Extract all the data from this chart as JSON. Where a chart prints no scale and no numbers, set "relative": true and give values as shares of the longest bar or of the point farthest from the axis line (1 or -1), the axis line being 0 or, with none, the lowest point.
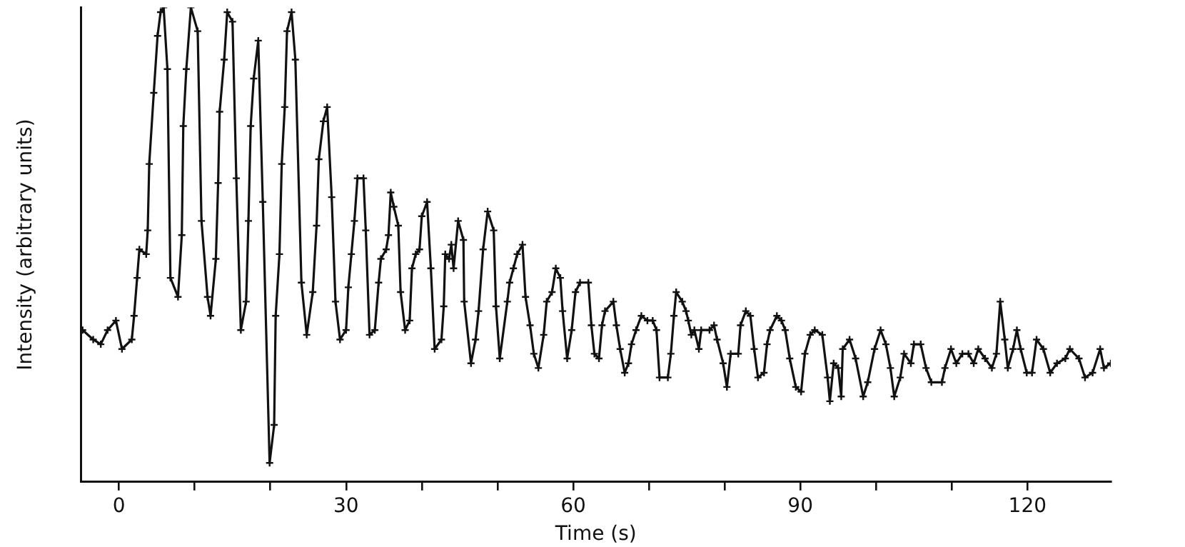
{
  "chart_data": {
    "type": "line",
    "xlabel": "Time (s)",
    "ylabel": "Intensity (arbitrary units)",
    "relative": true,
    "marker": "cross",
    "color": "#111111",
    "xlim": [
      -5,
      131
    ],
    "xticks": [
      0,
      {
        "value": 10,
        "label": null
      },
      {
        "value": 20,
        "label": null
      },
      30,
      {
        "value": 40,
        "label": null
      },
      {
        "value": 50,
        "label": null
      },
      60,
      {
        "value": 70,
        "label": null
      },
      {
        "value": 80,
        "label": null
      },
      90,
      {
        "value": 100,
        "label": null
      },
      {
        "value": 110,
        "label": null
      },
      120
    ],
    "x": [
      -4.8,
      -3.4,
      -2.4,
      -1.5,
      -0.4,
      0.4,
      1.7,
      2.0,
      2.4,
      2.7,
      3.6,
      3.8,
      4.0,
      4.6,
      5.1,
      5.5,
      5.9,
      6.4,
      6.8,
      7.8,
      8.3,
      8.5,
      8.9,
      9.5,
      10.4,
      10.9,
      11.7,
      12.1,
      12.8,
      13.1,
      13.3,
      13.9,
      14.3,
      15.0,
      15.5,
      16.1,
      16.8,
      17.1,
      17.4,
      17.8,
      18.4,
      19.0,
      19.9,
      20.5,
      20.7,
      21.2,
      21.5,
      21.9,
      22.2,
      22.8,
      23.3,
      24.1,
      24.8,
      25.6,
      26.1,
      26.4,
      27.0,
      27.5,
      28.1,
      28.6,
      29.2,
      30.0,
      30.3,
      30.7,
      31.1,
      31.5,
      32.3,
      32.6,
      33.1,
      33.8,
      34.3,
      34.6,
      35.3,
      35.6,
      35.9,
      36.3,
      36.9,
      37.2,
      37.8,
      38.4,
      38.7,
      39.2,
      39.7,
      40.0,
      40.7,
      41.2,
      41.7,
      42.6,
      42.9,
      43.1,
      43.6,
      43.9,
      44.2,
      44.8,
      45.5,
      45.6,
      46.5,
      47.1,
      47.5,
      48.1,
      48.7,
      49.5,
      49.8,
      50.3,
      51.3,
      51.6,
      52.1,
      52.6,
      53.3,
      53.7,
      54.3,
      54.8,
      55.4,
      56.1,
      56.5,
      57.2,
      57.7,
      58.3,
      58.6,
      59.2,
      59.8,
      60.3,
      60.9,
      62.0,
      62.4,
      62.8,
      63.4,
      63.8,
      64.2,
      65.3,
      65.7,
      66.2,
      66.8,
      67.3,
      67.7,
      68.3,
      69.0,
      69.8,
      70.5,
      71.0,
      71.4,
      72.5,
      72.9,
      73.3,
      73.6,
      74.4,
      74.9,
      75.2,
      75.6,
      76.0,
      76.6,
      76.9,
      78.0,
      78.6,
      79.0,
      79.8,
      80.3,
      80.8,
      81.8,
      82.1,
      82.8,
      83.4,
      83.9,
      84.4,
      85.2,
      85.6,
      86.0,
      86.9,
      87.5,
      88.0,
      88.6,
      89.4,
      90.1,
      90.6,
      91.3,
      91.9,
      92.9,
      93.6,
      93.9,
      94.4,
      95.0,
      95.4,
      95.6,
      96.5,
      97.3,
      98.3,
      98.9,
      99.8,
      100.6,
      101.3,
      101.9,
      102.4,
      103.2,
      103.7,
      104.6,
      105.0,
      105.9,
      106.6,
      107.3,
      108.7,
      109.1,
      109.9,
      110.6,
      111.4,
      112.2,
      112.9,
      113.5,
      114.4,
      115.3,
      115.9,
      116.4,
      117.0,
      117.4,
      118.1,
      118.6,
      119.1,
      119.9,
      120.6,
      121.2,
      122.1,
      123.0,
      123.9,
      125.0,
      125.6,
      126.8,
      127.6,
      128.6,
      129.6,
      130.1,
      131.0
    ],
    "values": [
      0.32,
      0.3,
      0.29,
      0.32,
      0.34,
      0.28,
      0.3,
      0.35,
      0.43,
      0.49,
      0.48,
      0.53,
      0.67,
      0.82,
      0.94,
      0.99,
      1.0,
      0.87,
      0.43,
      0.39,
      0.52,
      0.75,
      0.87,
      1.0,
      0.95,
      0.55,
      0.39,
      0.35,
      0.47,
      0.63,
      0.78,
      0.89,
      0.99,
      0.97,
      0.64,
      0.32,
      0.38,
      0.55,
      0.75,
      0.85,
      0.93,
      0.59,
      0.04,
      0.12,
      0.35,
      0.48,
      0.67,
      0.79,
      0.95,
      0.99,
      0.89,
      0.42,
      0.31,
      0.4,
      0.54,
      0.68,
      0.76,
      0.79,
      0.6,
      0.38,
      0.3,
      0.32,
      0.41,
      0.48,
      0.55,
      0.64,
      0.64,
      0.53,
      0.31,
      0.32,
      0.42,
      0.47,
      0.49,
      0.52,
      0.61,
      0.58,
      0.54,
      0.4,
      0.32,
      0.34,
      0.45,
      0.48,
      0.49,
      0.56,
      0.59,
      0.45,
      0.28,
      0.3,
      0.37,
      0.48,
      0.47,
      0.5,
      0.45,
      0.55,
      0.51,
      0.38,
      0.25,
      0.3,
      0.36,
      0.49,
      0.57,
      0.53,
      0.37,
      0.26,
      0.38,
      0.42,
      0.45,
      0.48,
      0.5,
      0.39,
      0.33,
      0.27,
      0.24,
      0.31,
      0.38,
      0.4,
      0.45,
      0.43,
      0.36,
      0.26,
      0.32,
      0.4,
      0.42,
      0.42,
      0.33,
      0.27,
      0.26,
      0.33,
      0.36,
      0.38,
      0.33,
      0.28,
      0.23,
      0.25,
      0.29,
      0.32,
      0.35,
      0.34,
      0.34,
      0.32,
      0.22,
      0.22,
      0.27,
      0.35,
      0.4,
      0.38,
      0.36,
      0.34,
      0.31,
      0.32,
      0.28,
      0.32,
      0.32,
      0.33,
      0.3,
      0.25,
      0.2,
      0.27,
      0.27,
      0.33,
      0.36,
      0.35,
      0.28,
      0.22,
      0.23,
      0.29,
      0.32,
      0.35,
      0.34,
      0.32,
      0.26,
      0.2,
      0.19,
      0.27,
      0.31,
      0.32,
      0.31,
      0.22,
      0.17,
      0.25,
      0.24,
      0.18,
      0.28,
      0.3,
      0.26,
      0.18,
      0.21,
      0.28,
      0.32,
      0.29,
      0.24,
      0.18,
      0.22,
      0.27,
      0.25,
      0.29,
      0.29,
      0.24,
      0.21,
      0.21,
      0.24,
      0.28,
      0.25,
      0.27,
      0.27,
      0.25,
      0.28,
      0.26,
      0.24,
      0.27,
      0.38,
      0.3,
      0.24,
      0.28,
      0.32,
      0.28,
      0.23,
      0.23,
      0.3,
      0.28,
      0.23,
      0.25,
      0.26,
      0.28,
      0.26,
      0.22,
      0.23,
      0.28,
      0.24,
      0.25
    ]
  }
}
